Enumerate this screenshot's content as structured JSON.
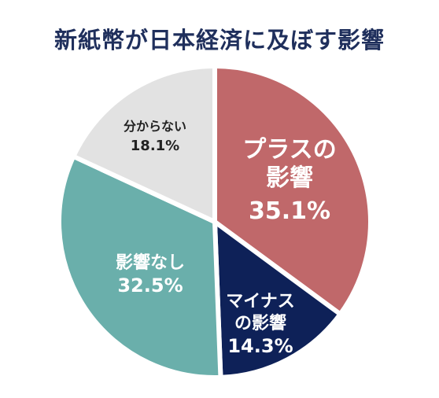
{
  "chart_data": {
    "type": "pie",
    "title": "新紙幣が日本経済に及ぼす影響",
    "slices": [
      {
        "label_lines": [
          "プラスの",
          "影響"
        ],
        "value": 35.1,
        "value_text": "35.1%",
        "color": "#c0686a",
        "text_color": "#ffffff"
      },
      {
        "label_lines": [
          "マイナス",
          "の影響"
        ],
        "value": 14.3,
        "value_text": "14.3%",
        "color": "#0e2158",
        "text_color": "#ffffff"
      },
      {
        "label_lines": [
          "影響なし"
        ],
        "value": 32.5,
        "value_text": "32.5%",
        "color": "#6aafab",
        "text_color": "#ffffff"
      },
      {
        "label_lines": [
          "分からない"
        ],
        "value": 18.1,
        "value_text": "18.1%",
        "color": "#e2e2e2",
        "text_color": "#222222"
      }
    ],
    "start": "12 o'clock",
    "direction": "clockwise"
  }
}
